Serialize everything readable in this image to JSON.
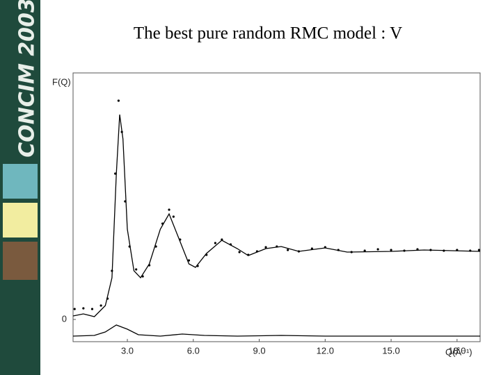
{
  "sidebar": {
    "label": "CONCIM 2003"
  },
  "chart_data": {
    "type": "line",
    "title": "The best pure random RMC model : V",
    "ylabel": "F(Q)",
    "xlabel": "Q(Å⁻¹)",
    "xlim": [
      0.53,
      19.05
    ],
    "ylim": [
      -0.32,
      3.55
    ],
    "xticks": [
      {
        "value": 3,
        "label": "3.0"
      },
      {
        "value": 6,
        "label": "6.0"
      },
      {
        "value": 9,
        "label": "9.0"
      },
      {
        "value": 12,
        "label": "12.0"
      },
      {
        "value": 15,
        "label": "15.0"
      },
      {
        "value": 18,
        "label": "18.0"
      }
    ],
    "yticks": [
      0
    ],
    "series": [
      {
        "color": "#000000",
        "mode": "markers",
        "x": [
          0.6,
          1.0,
          1.4,
          1.8,
          2.1,
          2.3,
          2.45,
          2.6,
          2.75,
          2.9,
          3.1,
          3.4,
          3.7,
          4.0,
          4.3,
          4.6,
          4.9,
          5.1,
          5.4,
          5.8,
          6.2,
          6.6,
          7.0,
          7.3,
          7.7,
          8.1,
          8.5,
          8.9,
          9.3,
          9.8,
          10.3,
          10.8,
          11.4,
          12.0,
          12.6,
          13.2,
          13.8,
          14.4,
          15.0,
          15.6,
          16.2,
          16.8,
          17.4,
          18.0,
          18.6,
          19.0
        ],
        "values": [
          0.15,
          0.16,
          0.15,
          0.2,
          0.3,
          0.7,
          2.1,
          3.15,
          2.7,
          1.7,
          1.05,
          0.72,
          0.62,
          0.78,
          1.05,
          1.38,
          1.58,
          1.48,
          1.15,
          0.85,
          0.77,
          0.93,
          1.1,
          1.15,
          1.08,
          0.97,
          0.93,
          0.98,
          1.04,
          1.05,
          1.0,
          0.98,
          1.02,
          1.04,
          1.0,
          0.97,
          0.99,
          1.01,
          1.0,
          0.99,
          1.01,
          1.0,
          0.99,
          1.0,
          0.99,
          1.0
        ]
      },
      {
        "color": "#000000",
        "mode": "lines",
        "x": [
          0.53,
          1.0,
          1.5,
          2.0,
          2.3,
          2.5,
          2.65,
          2.8,
          3.0,
          3.3,
          3.6,
          4.0,
          4.5,
          4.9,
          5.3,
          5.8,
          6.1,
          6.6,
          7.3,
          8.0,
          8.5,
          9.3,
          10.0,
          10.8,
          12.0,
          13.0,
          15.0,
          16.5,
          19.05
        ],
        "values": [
          0.05,
          0.08,
          0.04,
          0.2,
          0.6,
          2.1,
          2.95,
          2.6,
          1.3,
          0.7,
          0.6,
          0.8,
          1.3,
          1.52,
          1.2,
          0.8,
          0.75,
          0.95,
          1.14,
          1.02,
          0.92,
          1.02,
          1.05,
          0.98,
          1.03,
          0.97,
          0.98,
          1.0,
          0.98
        ]
      },
      {
        "color": "#000000",
        "mode": "lines",
        "x": [
          0.53,
          1.5,
          2.0,
          2.5,
          3.0,
          3.5,
          4.5,
          5.5,
          6.5,
          8.0,
          10.0,
          12.0,
          15.0,
          19.05
        ],
        "values": [
          -0.24,
          -0.23,
          -0.18,
          -0.08,
          -0.14,
          -0.22,
          -0.24,
          -0.21,
          -0.23,
          -0.24,
          -0.23,
          -0.24,
          -0.24,
          -0.24
        ]
      }
    ]
  }
}
